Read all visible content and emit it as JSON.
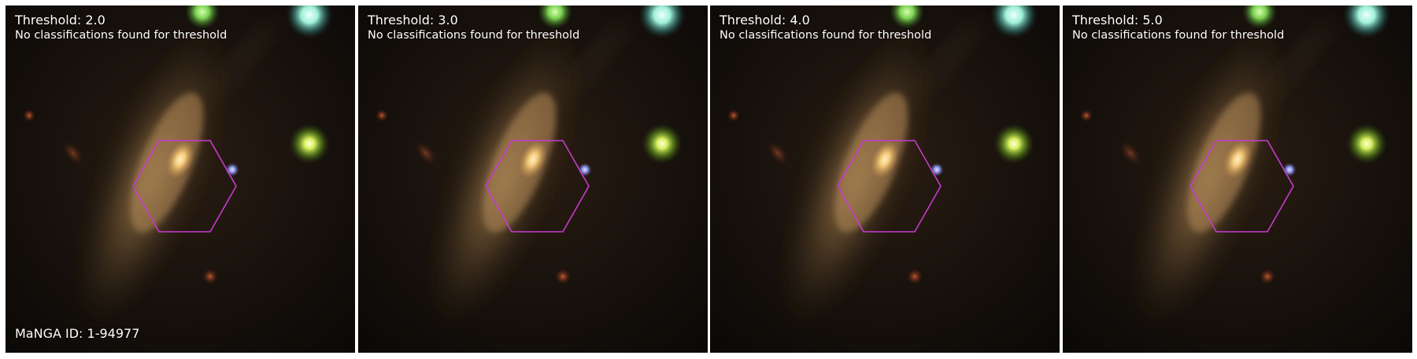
{
  "panels": [
    {
      "threshold_label": "Threshold: 2.0",
      "status": "No classifications found for threshold"
    },
    {
      "threshold_label": "Threshold: 3.0",
      "status": "No classifications found for threshold"
    },
    {
      "threshold_label": "Threshold: 4.0",
      "status": "No classifications found for threshold"
    },
    {
      "threshold_label": "Threshold: 5.0",
      "status": "No classifications found for threshold"
    }
  ],
  "manga_id": "MaNGA ID: 1-94977",
  "colors": {
    "hexagon": "#c93ad0",
    "background": "#0b0907",
    "text": "#ffffff"
  }
}
